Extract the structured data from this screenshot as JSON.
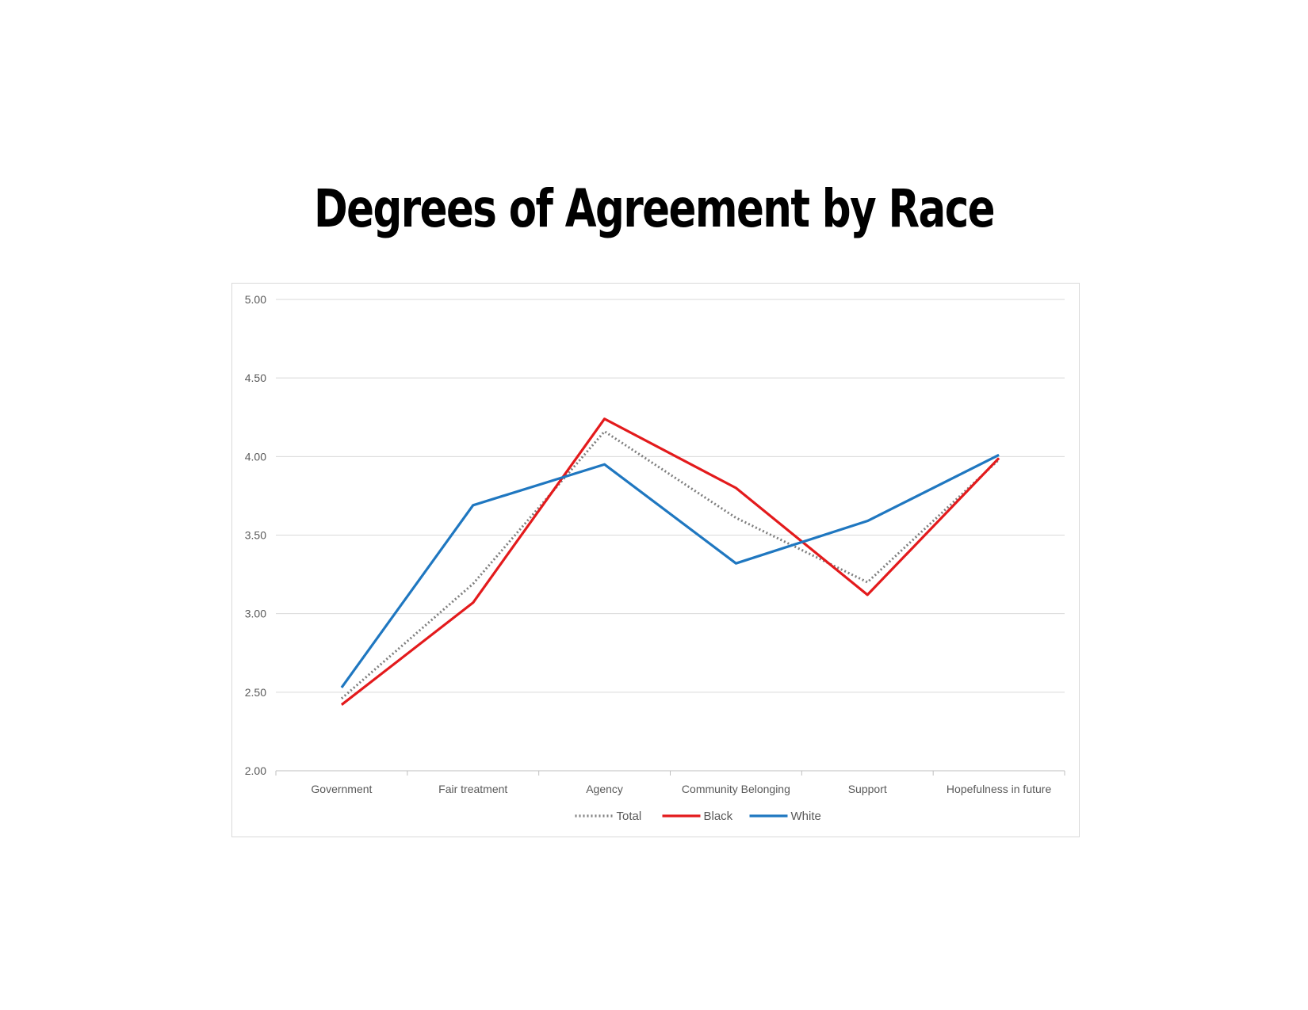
{
  "page": {
    "title": "Degrees of Agreement by Race"
  },
  "chart_data": {
    "type": "line",
    "title": "Degrees of Agreement by Race",
    "xlabel": "",
    "ylabel": "",
    "categories": [
      "Government",
      "Fair treatment",
      "Agency",
      "Community Belonging",
      "Support",
      "Hopefulness in future"
    ],
    "ylim": [
      2.0,
      5.0
    ],
    "yticks": [
      "2.00",
      "2.50",
      "3.00",
      "3.50",
      "4.00",
      "4.50",
      "5.00"
    ],
    "grid": true,
    "legend_position": "bottom",
    "series": [
      {
        "name": "Total",
        "values": [
          2.46,
          3.19,
          4.16,
          3.61,
          3.2,
          3.98
        ],
        "color": "#7f7f7f",
        "style": "dotted"
      },
      {
        "name": "Black",
        "values": [
          2.42,
          3.07,
          4.24,
          3.8,
          3.12,
          3.99
        ],
        "color": "#e31a1c",
        "style": "solid"
      },
      {
        "name": "White",
        "values": [
          2.53,
          3.69,
          3.95,
          3.32,
          3.59,
          4.01
        ],
        "color": "#1f77c0",
        "style": "solid"
      }
    ]
  }
}
